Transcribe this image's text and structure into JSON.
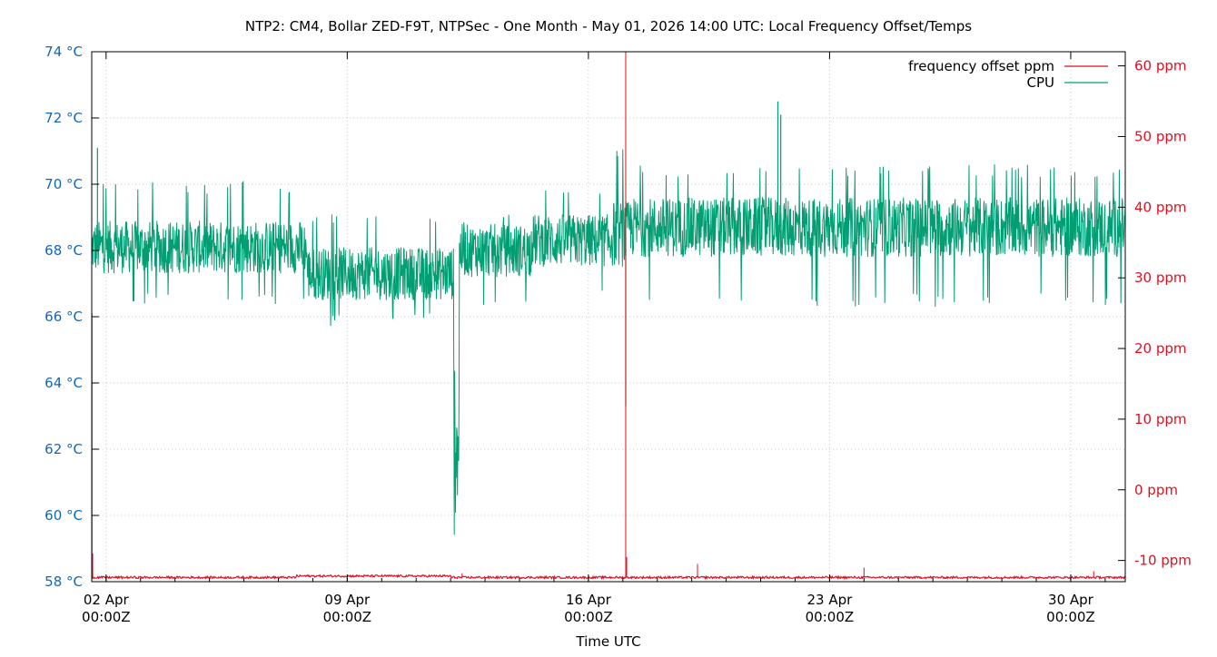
{
  "chart_data": {
    "type": "line",
    "title": "NTP2: CM4, Bollar ZED-F9T, NTPSec - One Month - May 01, 2026 14:00 UTC: Local Frequency Offset/Temps",
    "xlabel": "Time UTC",
    "ylabel": "",
    "y2label": "",
    "xlim": [
      "2026-04-01T14:00:00Z",
      "2026-05-01T14:00:00Z"
    ],
    "ylim": [
      58,
      74
    ],
    "y2lim": [
      -13,
      62
    ],
    "xticks": [
      {
        "value": "2026-04-02T00:00:00Z",
        "line1": "02 Apr",
        "line2": "00:00Z"
      },
      {
        "value": "2026-04-09T00:00:00Z",
        "line1": "09 Apr",
        "line2": "00:00Z"
      },
      {
        "value": "2026-04-16T00:00:00Z",
        "line1": "16 Apr",
        "line2": "00:00Z"
      },
      {
        "value": "2026-04-23T00:00:00Z",
        "line1": "23 Apr",
        "line2": "00:00Z"
      },
      {
        "value": "2026-04-30T00:00:00Z",
        "line1": "30 Apr",
        "line2": "00:00Z"
      }
    ],
    "yticks": [
      {
        "value": 74,
        "label": "74 °C"
      },
      {
        "value": 72,
        "label": "72 °C"
      },
      {
        "value": 70,
        "label": "70 °C"
      },
      {
        "value": 68,
        "label": "68 °C"
      },
      {
        "value": 66,
        "label": "66 °C"
      },
      {
        "value": 64,
        "label": "64 °C"
      },
      {
        "value": 62,
        "label": "62 °C"
      },
      {
        "value": 60,
        "label": "60 °C"
      },
      {
        "value": 58,
        "label": "58 °C"
      }
    ],
    "y2ticks": [
      {
        "value": 60,
        "label": "60 ppm"
      },
      {
        "value": 50,
        "label": "50 ppm"
      },
      {
        "value": 40,
        "label": "40 ppm"
      },
      {
        "value": 30,
        "label": "30 ppm"
      },
      {
        "value": 20,
        "label": "20 ppm"
      },
      {
        "value": 10,
        "label": "10 ppm"
      },
      {
        "value": 0,
        "label": "0 ppm"
      },
      {
        "value": -10,
        "label": "-10 ppm"
      }
    ],
    "grid": true,
    "legend": "top-right",
    "series": [
      {
        "name": "frequency offset ppm",
        "axis": "y2",
        "color": "#dd1122",
        "base": -12.4,
        "noise": 0.15,
        "segments": [
          {
            "from": "2026-04-01T14:00:00Z",
            "to": "2026-04-07T12:00:00Z",
            "base": -12.4
          },
          {
            "from": "2026-04-07T12:00:00Z",
            "to": "2026-04-12T00:00:00Z",
            "base": -12.2
          },
          {
            "from": "2026-04-12T00:00:00Z",
            "to": "2026-05-01T14:00:00Z",
            "base": -12.4
          }
        ],
        "spikes": [
          {
            "t": "2026-04-01T14:10:00Z",
            "v": 25
          },
          {
            "t": "2026-04-01T14:40:00Z",
            "v": -9
          },
          {
            "t": "2026-04-12T08:00:00Z",
            "v": -11.8
          },
          {
            "t": "2026-04-17T02:00:00Z",
            "v": 62
          },
          {
            "t": "2026-04-17T02:40:00Z",
            "v": -9.5
          },
          {
            "t": "2026-04-19T04:00:00Z",
            "v": -10.5
          },
          {
            "t": "2026-04-24T00:00:00Z",
            "v": -11
          },
          {
            "t": "2026-04-30T16:00:00Z",
            "v": -11.5
          }
        ]
      },
      {
        "name": "CPU",
        "axis": "y",
        "color": "#009e73",
        "segments": [
          {
            "from": "2026-04-01T14:00:00Z",
            "to": "2026-04-07T20:00:00Z",
            "mid": 68.1,
            "band": 0.8,
            "low": 66.3,
            "high": 70.1
          },
          {
            "from": "2026-04-07T20:00:00Z",
            "to": "2026-04-12T02:00:00Z",
            "mid": 67.3,
            "band": 0.8,
            "low": 65.7,
            "high": 69.1
          },
          {
            "from": "2026-04-12T02:00:00Z",
            "to": "2026-04-12T06:00:00Z",
            "mid": 62.5,
            "band": 2.5,
            "low": 59.4,
            "high": 68.0
          },
          {
            "from": "2026-04-12T06:00:00Z",
            "to": "2026-04-14T08:00:00Z",
            "mid": 68.0,
            "band": 0.8,
            "low": 66.3,
            "high": 69.1
          },
          {
            "from": "2026-04-14T08:00:00Z",
            "to": "2026-04-16T16:00:00Z",
            "mid": 68.3,
            "band": 0.8,
            "low": 66.5,
            "high": 70.1
          },
          {
            "from": "2026-04-16T16:00:00Z",
            "to": "2026-04-17T04:00:00Z",
            "mid": 68.5,
            "band": 1.0,
            "low": 63.0,
            "high": 71.1
          },
          {
            "from": "2026-04-17T04:00:00Z",
            "to": "2026-05-01T14:00:00Z",
            "mid": 68.7,
            "band": 0.9,
            "low": 66.3,
            "high": 70.6
          }
        ],
        "spikes": [
          {
            "t": "2026-04-01T18:00:00Z",
            "v": 71.1
          },
          {
            "t": "2026-04-17T02:00:00Z",
            "v": 63.3
          },
          {
            "t": "2026-04-21T12:00:00Z",
            "v": 72.5
          },
          {
            "t": "2026-04-21T14:00:00Z",
            "v": 72.1
          }
        ]
      }
    ]
  }
}
